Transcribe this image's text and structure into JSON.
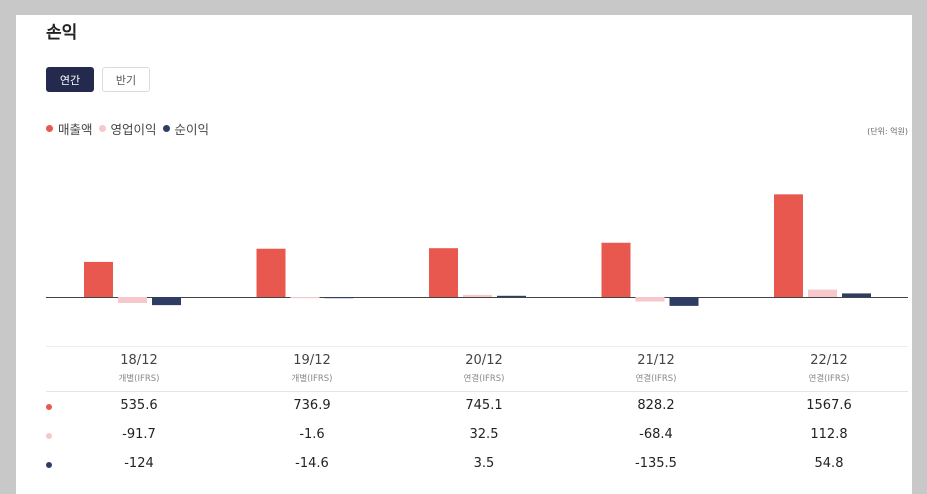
{
  "title": "손익",
  "tabs": {
    "annual": "연간",
    "half": "반기"
  },
  "unit_label": "(단위: 억원)",
  "colors": {
    "revenue": "#e8584f",
    "operating": "#f6c8cb",
    "net": "#2f3d65",
    "tab_active": "#232a4e"
  },
  "periods": [
    {
      "label": "18/12",
      "sub": "개별(IFRS)"
    },
    {
      "label": "19/12",
      "sub": "개별(IFRS)"
    },
    {
      "label": "20/12",
      "sub": "연결(IFRS)"
    },
    {
      "label": "21/12",
      "sub": "연결(IFRS)"
    },
    {
      "label": "22/12",
      "sub": "연결(IFRS)"
    }
  ],
  "chart_data": {
    "type": "bar",
    "categories": [
      "18/12",
      "19/12",
      "20/12",
      "21/12",
      "22/12"
    ],
    "series": [
      {
        "name": "매출액",
        "values": [
          535.6,
          736.9,
          745.1,
          828.2,
          1567.6
        ]
      },
      {
        "name": "영업이익",
        "values": [
          -91.7,
          -1.6,
          32.5,
          -68.4,
          112.8
        ]
      },
      {
        "name": "순이익",
        "values": [
          -124,
          -14.6,
          3.5,
          -135.5,
          54.8
        ]
      }
    ],
    "unit": "억원",
    "legend_position": "top-left"
  },
  "table_rows": [
    {
      "values": [
        "535.6",
        "736.9",
        "745.1",
        "828.2",
        "1567.6"
      ]
    },
    {
      "values": [
        "-91.7",
        "-1.6",
        "32.5",
        "-68.4",
        "112.8"
      ]
    },
    {
      "values": [
        "-124",
        "-14.6",
        "3.5",
        "-135.5",
        "54.8"
      ]
    }
  ]
}
